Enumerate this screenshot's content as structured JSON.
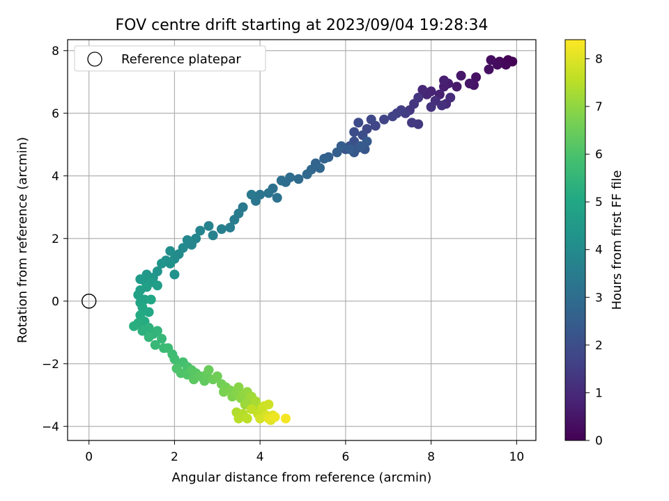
{
  "chart_data": {
    "type": "scatter",
    "title": "FOV centre drift starting at 2023/09/04 19:28:34",
    "xlabel": "Angular distance from reference (arcmin)",
    "ylabel": "Rotation from reference (arcmin)",
    "xlim": [
      -0.5,
      10.45
    ],
    "ylim": [
      -4.45,
      8.35
    ],
    "xticks": [
      0,
      2,
      4,
      6,
      8,
      10
    ],
    "yticks": [
      -4,
      -2,
      0,
      2,
      4,
      6,
      8
    ],
    "grid": true,
    "legend": {
      "position": "top-left",
      "entries": [
        "Reference platepar"
      ]
    },
    "reference_point": {
      "x": 0,
      "y": 0
    },
    "colorbar": {
      "label": "Hours from first FF file",
      "range": [
        0,
        8.4
      ],
      "ticks": [
        0,
        1,
        2,
        3,
        4,
        5,
        6,
        7,
        8
      ],
      "colormap": "viridis"
    },
    "points": [
      [
        9.9,
        7.65,
        0.0
      ],
      [
        9.8,
        7.7,
        0.05
      ],
      [
        9.7,
        7.6,
        0.1
      ],
      [
        9.75,
        7.55,
        0.15
      ],
      [
        9.6,
        7.65,
        0.2
      ],
      [
        9.55,
        7.55,
        0.25
      ],
      [
        9.4,
        7.7,
        0.3
      ],
      [
        9.35,
        7.4,
        0.35
      ],
      [
        9.05,
        7.15,
        0.4
      ],
      [
        9.0,
        6.9,
        0.45
      ],
      [
        8.9,
        6.95,
        0.5
      ],
      [
        8.7,
        7.2,
        0.55
      ],
      [
        8.6,
        6.85,
        0.6
      ],
      [
        8.4,
        6.95,
        0.65
      ],
      [
        8.3,
        6.85,
        0.7
      ],
      [
        8.3,
        7.05,
        0.75
      ],
      [
        8.2,
        6.6,
        0.8
      ],
      [
        8.0,
        6.7,
        0.85
      ],
      [
        7.9,
        6.6,
        0.9
      ],
      [
        7.8,
        6.75,
        0.95
      ],
      [
        8.35,
        6.3,
        1.0
      ],
      [
        8.45,
        6.5,
        1.05
      ],
      [
        8.1,
        6.4,
        1.1
      ],
      [
        8.25,
        6.25,
        1.15
      ],
      [
        8.0,
        6.2,
        1.2
      ],
      [
        7.7,
        6.5,
        1.25
      ],
      [
        7.6,
        6.3,
        1.3
      ],
      [
        7.5,
        6.1,
        1.35
      ],
      [
        7.7,
        5.65,
        1.4
      ],
      [
        7.55,
        5.7,
        1.45
      ],
      [
        7.4,
        6.0,
        1.5
      ],
      [
        7.3,
        6.1,
        1.55
      ],
      [
        7.2,
        6.0,
        1.6
      ],
      [
        7.1,
        5.9,
        1.65
      ],
      [
        6.9,
        5.8,
        1.7
      ],
      [
        6.7,
        5.6,
        1.75
      ],
      [
        6.6,
        5.8,
        1.8
      ],
      [
        6.5,
        5.5,
        1.85
      ],
      [
        6.3,
        5.7,
        1.9
      ],
      [
        6.2,
        5.4,
        1.95
      ],
      [
        6.4,
        5.3,
        2.0
      ],
      [
        6.2,
        5.1,
        2.05
      ],
      [
        6.1,
        4.95,
        2.1
      ],
      [
        6.0,
        4.85,
        2.15
      ],
      [
        6.3,
        4.9,
        2.2
      ],
      [
        6.45,
        4.85,
        2.25
      ],
      [
        6.2,
        4.75,
        2.3
      ],
      [
        6.5,
        5.1,
        2.35
      ],
      [
        6.35,
        4.95,
        2.4
      ],
      [
        6.1,
        4.85,
        2.45
      ],
      [
        5.9,
        4.95,
        2.5
      ],
      [
        5.8,
        4.75,
        2.55
      ],
      [
        5.6,
        4.6,
        2.6
      ],
      [
        5.5,
        4.55,
        2.65
      ],
      [
        5.3,
        4.4,
        2.7
      ],
      [
        5.4,
        4.25,
        2.75
      ],
      [
        5.2,
        4.2,
        2.8
      ],
      [
        5.1,
        4.05,
        2.85
      ],
      [
        4.9,
        3.9,
        2.9
      ],
      [
        4.7,
        3.95,
        2.95
      ],
      [
        4.6,
        3.8,
        3.0
      ],
      [
        4.5,
        3.85,
        3.05
      ],
      [
        4.3,
        3.6,
        3.1
      ],
      [
        4.4,
        3.3,
        3.15
      ],
      [
        4.2,
        3.45,
        3.2
      ],
      [
        4.0,
        3.4,
        3.25
      ],
      [
        3.9,
        3.2,
        3.3
      ],
      [
        3.8,
        3.4,
        3.35
      ],
      [
        3.6,
        3.0,
        3.4
      ],
      [
        3.5,
        2.8,
        3.45
      ],
      [
        3.4,
        2.6,
        3.5
      ],
      [
        3.3,
        2.35,
        3.55
      ],
      [
        3.1,
        2.3,
        3.6
      ],
      [
        2.9,
        2.1,
        3.65
      ],
      [
        2.8,
        2.4,
        3.7
      ],
      [
        2.6,
        2.25,
        3.75
      ],
      [
        2.5,
        2.0,
        3.8
      ],
      [
        2.4,
        1.8,
        3.85
      ],
      [
        2.3,
        1.95,
        3.9
      ],
      [
        2.2,
        1.7,
        3.95
      ],
      [
        2.1,
        1.5,
        4.0
      ],
      [
        2.0,
        1.35,
        4.05
      ],
      [
        1.9,
        1.6,
        4.1
      ],
      [
        1.8,
        1.3,
        4.15
      ],
      [
        1.9,
        1.2,
        4.2
      ],
      [
        2.0,
        0.85,
        4.25
      ],
      [
        1.7,
        1.2,
        4.3
      ],
      [
        1.6,
        0.95,
        4.35
      ],
      [
        1.5,
        0.75,
        4.4
      ],
      [
        1.35,
        0.85,
        4.45
      ],
      [
        1.3,
        0.65,
        4.5
      ],
      [
        1.2,
        0.7,
        4.55
      ],
      [
        1.45,
        0.6,
        4.6
      ],
      [
        1.6,
        0.5,
        4.65
      ],
      [
        1.35,
        0.45,
        4.7
      ],
      [
        1.2,
        0.35,
        4.75
      ],
      [
        1.15,
        0.2,
        4.8
      ],
      [
        1.3,
        0.05,
        4.85
      ],
      [
        1.2,
        -0.05,
        4.9
      ],
      [
        1.45,
        0.05,
        4.95
      ],
      [
        1.25,
        -0.2,
        5.0
      ],
      [
        1.4,
        -0.35,
        5.05
      ],
      [
        1.2,
        -0.45,
        5.1
      ],
      [
        1.3,
        -0.65,
        5.15
      ],
      [
        1.15,
        -0.7,
        5.2
      ],
      [
        1.05,
        -0.8,
        5.25
      ],
      [
        1.25,
        -0.95,
        5.3
      ],
      [
        1.4,
        -0.85,
        5.35
      ],
      [
        1.5,
        -1.05,
        5.4
      ],
      [
        1.6,
        -0.95,
        5.45
      ],
      [
        1.4,
        -1.15,
        5.5
      ],
      [
        1.7,
        -1.2,
        5.55
      ],
      [
        1.55,
        -1.4,
        5.6
      ],
      [
        1.75,
        -1.5,
        5.65
      ],
      [
        1.85,
        -1.5,
        5.7
      ],
      [
        1.95,
        -1.7,
        5.75
      ],
      [
        2.0,
        -1.85,
        5.8
      ],
      [
        2.1,
        -2.0,
        5.85
      ],
      [
        2.2,
        -1.95,
        5.9
      ],
      [
        2.3,
        -2.1,
        5.95
      ],
      [
        2.05,
        -2.15,
        6.0
      ],
      [
        2.15,
        -2.3,
        6.05
      ],
      [
        2.3,
        -2.35,
        6.1
      ],
      [
        2.4,
        -2.2,
        6.15
      ],
      [
        2.5,
        -2.3,
        6.2
      ],
      [
        2.45,
        -2.5,
        6.25
      ],
      [
        2.6,
        -2.4,
        6.3
      ],
      [
        2.7,
        -2.55,
        6.35
      ],
      [
        2.75,
        -2.35,
        6.4
      ],
      [
        2.8,
        -2.2,
        6.45
      ],
      [
        2.9,
        -2.5,
        6.5
      ],
      [
        3.0,
        -2.4,
        6.55
      ],
      [
        3.1,
        -2.65,
        6.6
      ],
      [
        3.2,
        -2.75,
        6.65
      ],
      [
        3.15,
        -2.9,
        6.7
      ],
      [
        3.3,
        -2.85,
        6.75
      ],
      [
        3.35,
        -3.05,
        6.8
      ],
      [
        3.45,
        -2.95,
        6.85
      ],
      [
        3.5,
        -2.75,
        6.9
      ],
      [
        3.55,
        -3.1,
        6.95
      ],
      [
        3.6,
        -3.0,
        7.0
      ],
      [
        3.7,
        -2.9,
        7.05
      ],
      [
        3.75,
        -3.15,
        7.1
      ],
      [
        3.65,
        -3.3,
        7.15
      ],
      [
        3.8,
        -3.05,
        7.2
      ],
      [
        3.85,
        -3.35,
        7.25
      ],
      [
        3.9,
        -3.2,
        7.3
      ],
      [
        3.95,
        -3.5,
        7.35
      ],
      [
        3.45,
        -3.55,
        7.4
      ],
      [
        3.6,
        -3.6,
        7.45
      ],
      [
        3.5,
        -3.75,
        7.5
      ],
      [
        3.7,
        -3.75,
        7.55
      ],
      [
        3.8,
        -3.45,
        7.6
      ],
      [
        3.95,
        -3.6,
        7.65
      ],
      [
        4.05,
        -3.4,
        7.7
      ],
      [
        4.1,
        -3.35,
        7.75
      ],
      [
        4.2,
        -3.3,
        7.8
      ],
      [
        4.0,
        -3.75,
        7.85
      ],
      [
        4.15,
        -3.65,
        7.9
      ],
      [
        4.25,
        -3.8,
        7.95
      ],
      [
        4.3,
        -3.65,
        8.0
      ],
      [
        4.2,
        -3.75,
        8.1
      ],
      [
        4.35,
        -3.7,
        8.2
      ],
      [
        4.6,
        -3.75,
        8.3
      ]
    ]
  }
}
